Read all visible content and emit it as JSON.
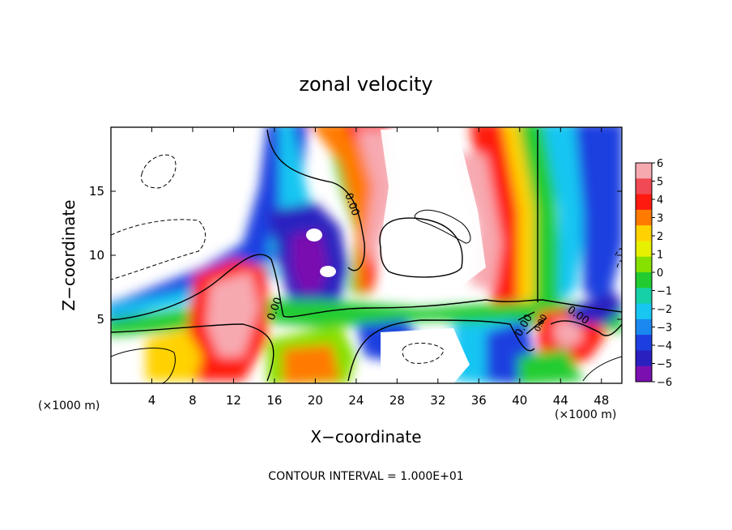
{
  "chart_data": {
    "type": "heatmap",
    "title": "zonal velocity",
    "xlabel": "X−coordinate",
    "ylabel": "Z−coordinate",
    "x_unit": "(×1000 m)",
    "x_unit_right": "(×1000 m)",
    "footnote": "CONTOUR INTERVAL = 1.000E+01",
    "xlim": [
      0,
      50
    ],
    "ylim": [
      0,
      20
    ],
    "x_ticks": [
      4,
      8,
      12,
      16,
      20,
      24,
      28,
      32,
      36,
      40,
      44,
      48
    ],
    "y_ticks": [
      5,
      10,
      15
    ],
    "colorbar": {
      "min": -6,
      "max": 6,
      "labels": [
        6,
        5,
        4,
        3,
        2,
        1,
        0,
        -1,
        -2,
        -3,
        -4,
        -5,
        -6
      ],
      "colors": [
        "#f7a9b0",
        "#f14a55",
        "#ff1a10",
        "#ff7a00",
        "#ffd200",
        "#e6f000",
        "#86e000",
        "#22cc30",
        "#16d0a8",
        "#18c6f2",
        "#1a88f0",
        "#1d3fe0",
        "#2a20c0",
        "#7a10b0"
      ]
    },
    "contour_labels": [
      "0.00",
      "0.00",
      "0.00",
      "0.00",
      "0.00"
    ],
    "grid": false
  }
}
